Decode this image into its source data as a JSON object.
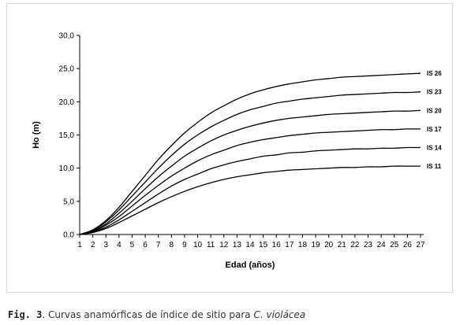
{
  "caption": {
    "label": "Fig. 3",
    "text": ". Curvas anamórficas de índice de sitio para ",
    "species": "C. violácea"
  },
  "chart_data": {
    "type": "line",
    "title": "",
    "xlabel": "Edad (años)",
    "ylabel": "Ho (m)",
    "xlim": [
      1,
      27
    ],
    "ylim": [
      0,
      30
    ],
    "x_ticks": [
      1,
      2,
      3,
      4,
      5,
      6,
      7,
      8,
      9,
      10,
      11,
      12,
      13,
      14,
      15,
      16,
      17,
      18,
      19,
      20,
      21,
      22,
      23,
      24,
      25,
      26,
      27
    ],
    "y_ticks": [
      "0,0",
      "5,0",
      "10,0",
      "15,0",
      "20,0",
      "25,0",
      "30,0"
    ],
    "legend": "curve-end labels",
    "x": [
      1,
      2,
      3,
      4,
      5,
      6,
      7,
      8,
      9,
      10,
      11,
      12,
      13,
      14,
      15,
      16,
      17,
      18,
      19,
      20,
      21,
      22,
      23,
      24,
      25,
      26,
      27
    ],
    "series": [
      {
        "name": "IS 26",
        "values": [
          0.0,
          0.7,
          2.1,
          4.1,
          6.5,
          8.9,
          11.3,
          13.4,
          15.3,
          16.9,
          18.3,
          19.4,
          20.4,
          21.2,
          21.8,
          22.3,
          22.7,
          23.0,
          23.3,
          23.5,
          23.7,
          23.8,
          23.9,
          24.0,
          24.1,
          24.2,
          24.3
        ]
      },
      {
        "name": "IS 23",
        "values": [
          0.0,
          0.6,
          1.9,
          3.7,
          5.8,
          7.9,
          10.0,
          11.9,
          13.6,
          15.0,
          16.2,
          17.2,
          18.1,
          18.8,
          19.3,
          19.8,
          20.1,
          20.4,
          20.6,
          20.8,
          21.0,
          21.1,
          21.2,
          21.3,
          21.4,
          21.4,
          21.5
        ]
      },
      {
        "name": "IS 20",
        "values": [
          0.0,
          0.5,
          1.6,
          3.2,
          5.0,
          6.9,
          8.7,
          10.3,
          11.8,
          13.0,
          14.1,
          15.0,
          15.7,
          16.3,
          16.8,
          17.2,
          17.5,
          17.7,
          17.9,
          18.1,
          18.2,
          18.3,
          18.4,
          18.5,
          18.6,
          18.6,
          18.7
        ]
      },
      {
        "name": "IS 17",
        "values": [
          0.0,
          0.45,
          1.4,
          2.7,
          4.3,
          5.9,
          7.4,
          8.8,
          10.0,
          11.1,
          12.0,
          12.7,
          13.4,
          13.9,
          14.3,
          14.6,
          14.9,
          15.1,
          15.3,
          15.4,
          15.5,
          15.6,
          15.7,
          15.8,
          15.8,
          15.9,
          15.9
        ]
      },
      {
        "name": "IS 14",
        "values": [
          0.0,
          0.4,
          1.1,
          2.2,
          3.5,
          4.8,
          6.1,
          7.3,
          8.3,
          9.1,
          9.9,
          10.5,
          11.0,
          11.4,
          11.8,
          12.0,
          12.3,
          12.4,
          12.6,
          12.7,
          12.8,
          12.9,
          12.9,
          13.0,
          13.0,
          13.1,
          13.1
        ]
      },
      {
        "name": "IS 11",
        "values": [
          0.0,
          0.3,
          0.9,
          1.8,
          2.8,
          3.8,
          4.8,
          5.7,
          6.5,
          7.2,
          7.8,
          8.3,
          8.7,
          9.0,
          9.3,
          9.5,
          9.7,
          9.8,
          9.9,
          10.0,
          10.1,
          10.1,
          10.2,
          10.2,
          10.3,
          10.3,
          10.3
        ]
      }
    ],
    "colors": {
      "line": "#000000",
      "axis": "#000000",
      "frame": "#d9d9d9"
    }
  }
}
